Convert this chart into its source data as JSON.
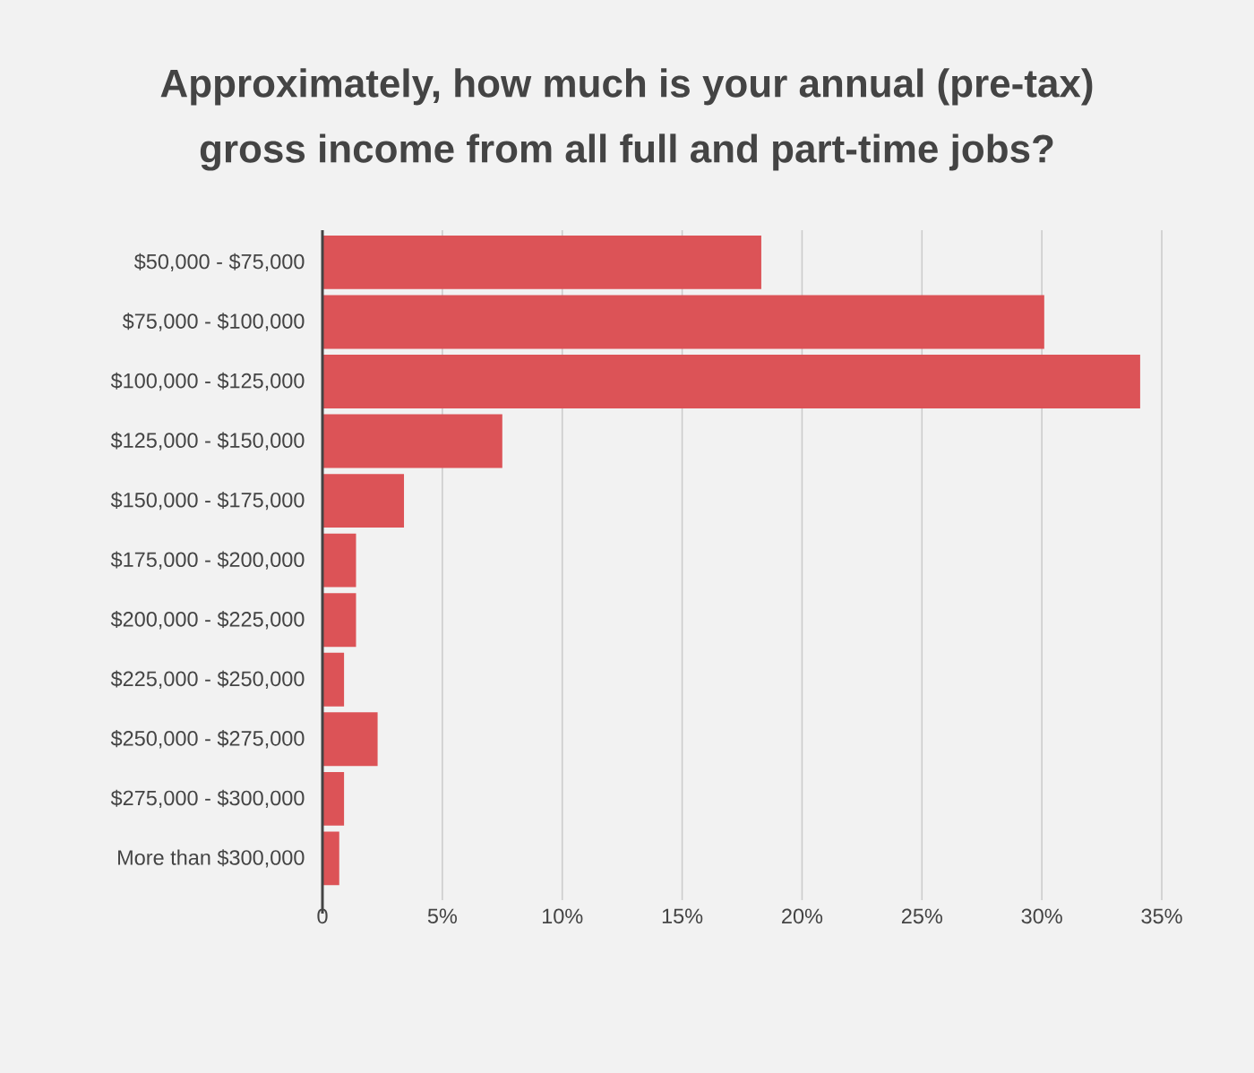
{
  "chart_data": {
    "type": "bar",
    "orientation": "horizontal",
    "title": "Approximately, how much is your annual (pre-tax) gross income from all full and part-time jobs?",
    "categories": [
      "$50,000 - $75,000",
      "$75,000 - $100,000",
      "$100,000 - $125,000",
      "$125,000 - $150,000",
      "$150,000 - $175,000",
      "$175,000 - $200,000",
      "$200,000 - $225,000",
      "$225,000 - $250,000",
      "$250,000 - $275,000",
      "$275,000 - $300,000",
      "More than $300,000"
    ],
    "values": [
      18.3,
      30.1,
      34.1,
      7.5,
      3.4,
      1.4,
      1.4,
      0.9,
      2.3,
      0.9,
      0.7
    ],
    "color": "#dc5357",
    "xlim": [
      0,
      35
    ],
    "xticks": [
      0,
      {
        "value": 5,
        "label": "5%"
      },
      {
        "value": 10,
        "label": "10%"
      },
      {
        "value": 15,
        "label": "15%"
      },
      {
        "value": 20,
        "label": "20%"
      },
      {
        "value": 25,
        "label": "25%"
      },
      {
        "value": 30,
        "label": "30%"
      },
      {
        "value": 35,
        "label": "35%"
      }
    ],
    "grid": "x"
  }
}
